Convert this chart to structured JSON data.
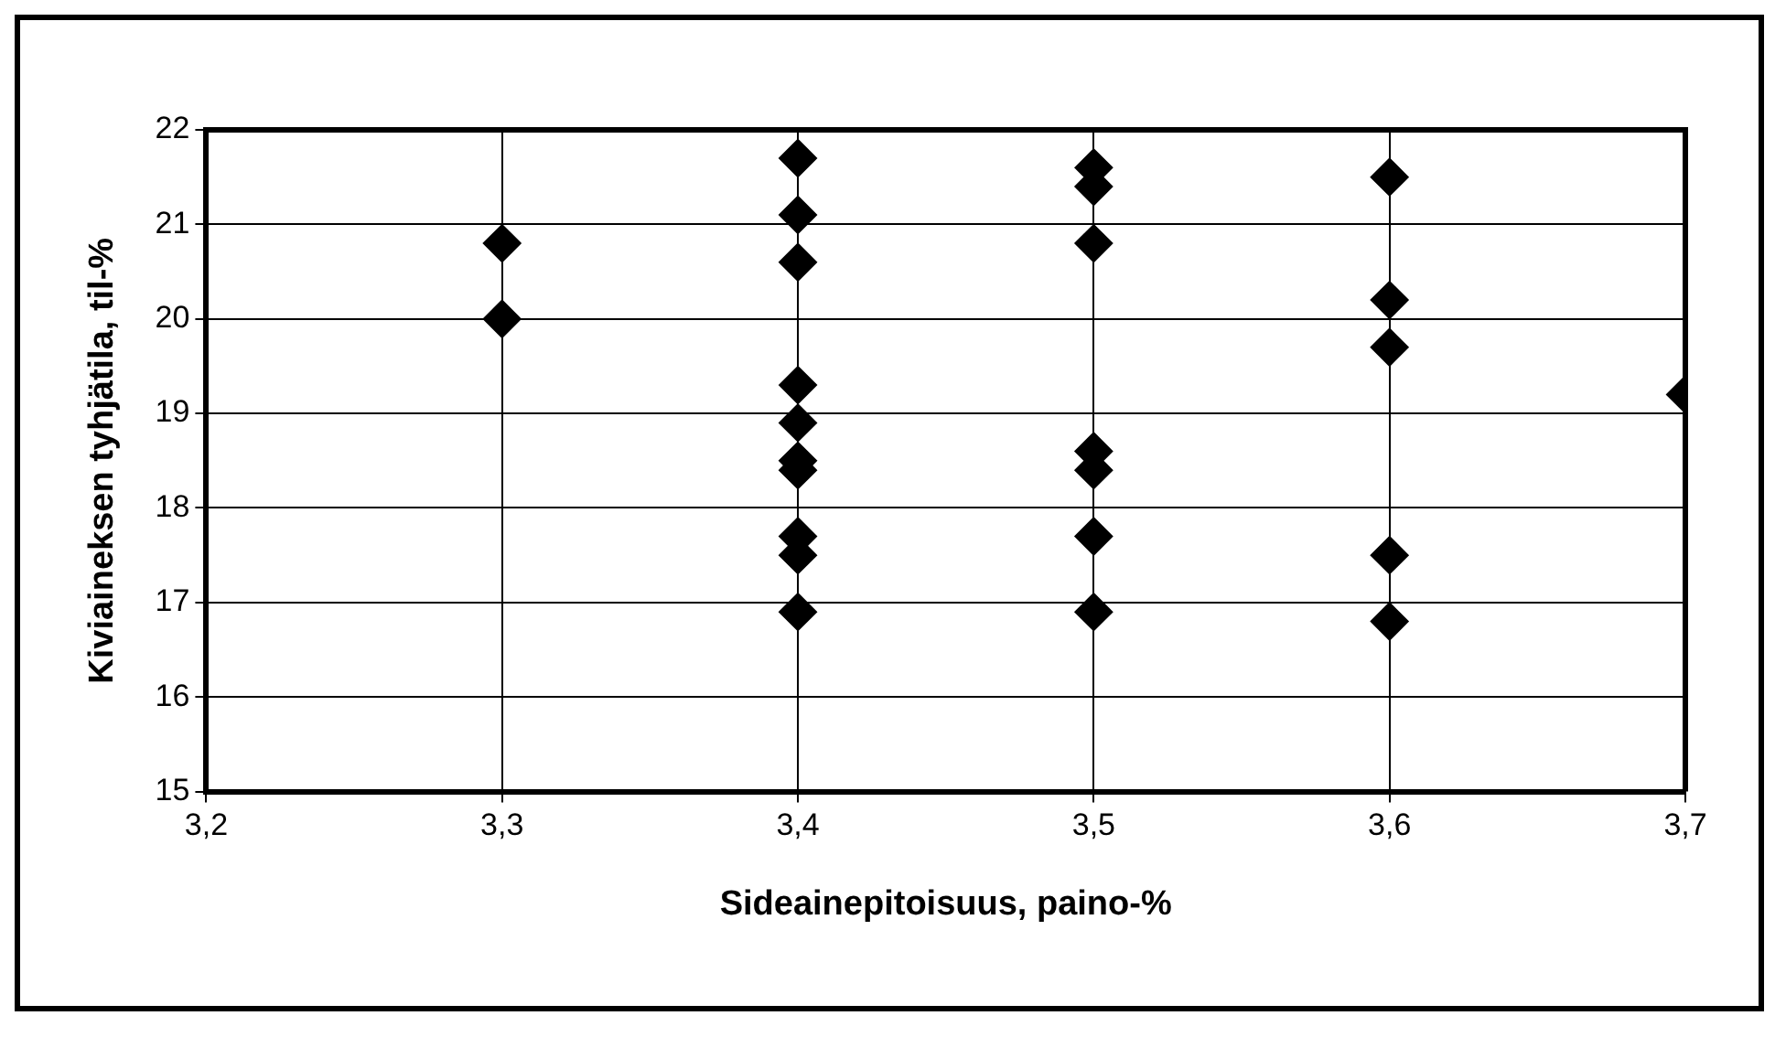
{
  "chart_data": {
    "type": "scatter",
    "xlabel": "Sideainepitoisuus, paino-%",
    "ylabel": "Kiviaineksen tyhjätila, til-%",
    "x": [
      3.3,
      3.3,
      3.4,
      3.4,
      3.4,
      3.4,
      3.4,
      3.4,
      3.4,
      3.4,
      3.4,
      3.4,
      3.5,
      3.5,
      3.5,
      3.5,
      3.5,
      3.5,
      3.5,
      3.6,
      3.6,
      3.6,
      3.6,
      3.6,
      3.7
    ],
    "series": [
      {
        "color": "#000000",
        "values": [
          20.8,
          20.0,
          21.7,
          21.1,
          20.6,
          19.3,
          18.9,
          18.5,
          18.4,
          17.7,
          17.5,
          16.9,
          21.6,
          21.4,
          20.8,
          18.6,
          18.4,
          17.7,
          16.9,
          21.5,
          20.2,
          19.7,
          17.5,
          16.8,
          19.2
        ]
      }
    ],
    "xlim": [
      3.2,
      3.7
    ],
    "xticks": [
      {
        "value": 3.2,
        "label": "3,2"
      },
      {
        "value": 3.3,
        "label": "3,3"
      },
      {
        "value": 3.4,
        "label": "3,4"
      },
      {
        "value": 3.5,
        "label": "3,5"
      },
      {
        "value": 3.6,
        "label": "3,6"
      },
      {
        "value": 3.7,
        "label": "3,7"
      }
    ],
    "ylim": [
      15,
      22
    ],
    "yticks": [
      15,
      16,
      17,
      18,
      19,
      20,
      21,
      22
    ],
    "grid": true,
    "legend": false,
    "marker": "diamond"
  }
}
